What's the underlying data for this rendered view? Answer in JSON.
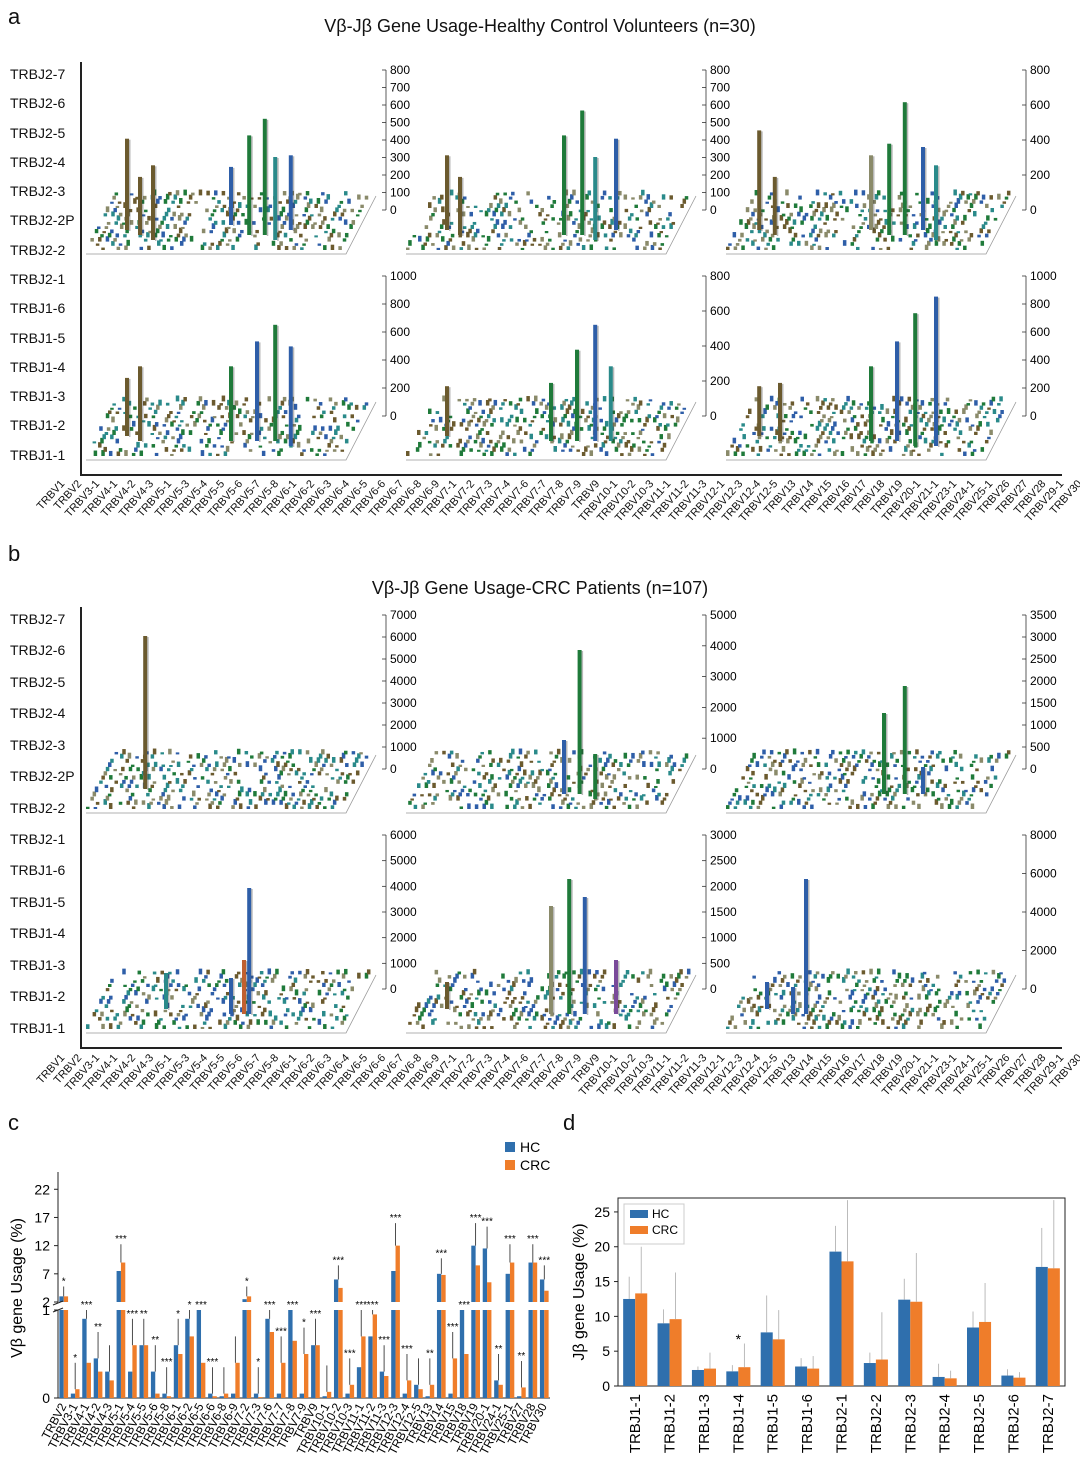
{
  "panel_labels": {
    "a": "a",
    "b": "b",
    "c": "c",
    "d": "d"
  },
  "panel_a": {
    "title": "Vβ-Jβ Gene Usage-Healthy Control Volunteers (n=30)",
    "jb_labels": [
      "TRBJ2-7",
      "TRBJ2-6",
      "TRBJ2-5",
      "TRBJ2-4",
      "TRBJ2-3",
      "TRBJ2-2P",
      "TRBJ2-2",
      "TRBJ2-1",
      "TRBJ1-6",
      "TRBJ1-5",
      "TRBJ1-4",
      "TRBJ1-3",
      "TRBJ1-2",
      "TRBJ1-1"
    ],
    "z_ticks": [
      [
        "800",
        "700",
        "600",
        "500",
        "400",
        "300",
        "200",
        "100",
        "0"
      ],
      [
        "800",
        "700",
        "600",
        "500",
        "400",
        "300",
        "200",
        "100",
        "0"
      ],
      [
        "800",
        "600",
        "400",
        "200",
        "0"
      ],
      [
        "1000",
        "800",
        "600",
        "400",
        "200",
        "0"
      ],
      [
        "800",
        "600",
        "400",
        "200",
        "0"
      ],
      [
        "1000",
        "800",
        "600",
        "400",
        "200",
        "0"
      ]
    ]
  },
  "panel_b": {
    "title": "Vβ-Jβ Gene Usage-CRC Patients (n=107)",
    "jb_labels": [
      "TRBJ2-7",
      "TRBJ2-6",
      "TRBJ2-5",
      "TRBJ2-4",
      "TRBJ2-3",
      "TRBJ2-2P",
      "TRBJ2-2",
      "TRBJ2-1",
      "TRBJ1-6",
      "TRBJ1-5",
      "TRBJ1-4",
      "TRBJ1-3",
      "TRBJ1-2",
      "TRBJ1-1"
    ],
    "z_ticks": [
      [
        "7000",
        "6000",
        "5000",
        "4000",
        "3000",
        "2000",
        "1000",
        "0"
      ],
      [
        "5000",
        "4000",
        "3000",
        "2000",
        "1000",
        "0"
      ],
      [
        "3500",
        "3000",
        "2500",
        "2000",
        "1500",
        "1000",
        "500",
        "0"
      ],
      [
        "6000",
        "5000",
        "4000",
        "3000",
        "2000",
        "1000",
        "0"
      ],
      [
        "3000",
        "2500",
        "2000",
        "1500",
        "1000",
        "500",
        "0"
      ],
      [
        "8000",
        "6000",
        "4000",
        "2000",
        "0"
      ]
    ]
  },
  "vb_labels": [
    "TRBV1",
    "TRBV2",
    "TRBV3-1",
    "TRBV4-1",
    "TRBV4-2",
    "TRBV4-3",
    "TRBV5-1",
    "TRBV5-3",
    "TRBV5-4",
    "TRBV5-5",
    "TRBV5-6",
    "TRBV5-7",
    "TRBV5-8",
    "TRBV6-1",
    "TRBV6-2",
    "TRBV6-3",
    "TRBV6-4",
    "TRBV6-5",
    "TRBV6-6",
    "TRBV6-7",
    "TRBV6-8",
    "TRBV6-9",
    "TRBV7-1",
    "TRBV7-2",
    "TRBV7-3",
    "TRBV7-4",
    "TRBV7-6",
    "TRBV7-7",
    "TRBV7-8",
    "TRBV7-9",
    "TRBV9",
    "TRBV10-1",
    "TRBV10-2",
    "TRBV10-3",
    "TRBV11-1",
    "TRBV11-2",
    "TRBV11-3",
    "TRBV12-1",
    "TRBV12-3",
    "TRBV12-4",
    "TRBV12-5",
    "TRBV13",
    "TRBV14",
    "TRBV15",
    "TRBV16",
    "TRBV17",
    "TRBV18",
    "TRBV19",
    "TRBV20-1",
    "TRBV21-1",
    "TRBV23-1",
    "TRBV24-1",
    "TRBV25-1",
    "TRBV26",
    "TRBV27",
    "TRBV28",
    "TRBV29-1",
    "TRBV30"
  ],
  "colors": {
    "hc": "#2f6fad",
    "crc": "#ef7d2a",
    "green": "#1f7a3a",
    "olive": "#6b5a2e",
    "blue": "#2e5ea8",
    "teal": "#2a8a8a"
  },
  "chart_data": [
    {
      "type": "bar",
      "panel": "c",
      "title": "",
      "xlabel": "",
      "ylabel": "Vβ gene Usage (%)",
      "legend": [
        "HC",
        "CRC"
      ],
      "legend_position": "top-right",
      "y_ticks_upper": [
        "22",
        "17",
        "12",
        "7",
        "2"
      ],
      "y_ticks_lower": [
        "1",
        "0"
      ],
      "broken_axis": {
        "lower": [
          0,
          1
        ],
        "upper": [
          2,
          24
        ]
      },
      "categories": [
        "TRBV2",
        "TRBV3-1",
        "TRBV4-1",
        "TRBV4-2",
        "TRBV4-3",
        "TRBV5-1",
        "TRBV5-4",
        "TRBV5-5",
        "TRBV5-6",
        "TRBV5-8",
        "TRBV6-1",
        "TRBV6-2",
        "TRBV6-5",
        "TRBV6-6",
        "TRBV6-8",
        "TRBV6-9",
        "TRBV7-2",
        "TRBV7-3",
        "TRBV7-6",
        "TRBV7-7",
        "TRBV7-8",
        "TRBV7-9",
        "TRBV9",
        "TRBV10-1",
        "TRBV10-2",
        "TRBV10-3",
        "TRBV11-1",
        "TRBV11-2",
        "TRBV11-3",
        "TRBV12-3",
        "TRBV12-4",
        "TRBV12-5",
        "TRBV13",
        "TRBV14",
        "TRBV15",
        "TRBV18",
        "TRBV19",
        "TRBV20-1",
        "TRBV24-1",
        "TRBV25-1",
        "TRBV27",
        "TRBV28",
        "TRBV30"
      ],
      "series": [
        {
          "name": "HC",
          "values": [
            3.0,
            0.05,
            0.9,
            0.45,
            0.3,
            7.5,
            0.3,
            0.6,
            0.3,
            0.05,
            0.6,
            0.9,
            1.0,
            0.05,
            0.02,
            0.05,
            2.5,
            0.05,
            0.9,
            0.05,
            1.0,
            0.05,
            0.6,
            0.02,
            6.0,
            0.05,
            0.35,
            0.7,
            0.3,
            7.5,
            0.05,
            0.15,
            0.02,
            7.0,
            0.05,
            1.0,
            12.0,
            11.5,
            0.2,
            7.0,
            0.02,
            9.0,
            6.0
          ]
        },
        {
          "name": "CRC",
          "values": [
            3.0,
            0.1,
            0.4,
            0.3,
            0.2,
            9.0,
            0.6,
            0.6,
            0.05,
            0.02,
            0.5,
            0.7,
            0.4,
            0.02,
            0.05,
            0.4,
            3.0,
            0.01,
            0.75,
            0.4,
            0.65,
            0.5,
            0.6,
            0.07,
            4.5,
            0.15,
            0.7,
            0.95,
            0.25,
            12.0,
            0.2,
            0.1,
            0.15,
            6.8,
            0.45,
            0.5,
            8.5,
            5.5,
            0.15,
            9.0,
            0.12,
            9.0,
            4.0
          ]
        }
      ],
      "significance": [
        "*",
        "*",
        "***",
        "**",
        "",
        "***",
        "***",
        "**",
        "**",
        "***",
        "*",
        "*",
        "***",
        "***",
        "",
        "",
        "*",
        "*",
        "***",
        "***",
        "***",
        "*",
        "***",
        "",
        "***",
        "***",
        "***",
        "***",
        "***",
        "***",
        "***",
        "",
        "**",
        "***",
        "***",
        "***",
        "***",
        "***",
        "**",
        "***",
        "**",
        "***",
        "***"
      ]
    },
    {
      "type": "bar",
      "panel": "d",
      "title": "",
      "xlabel": "",
      "ylabel": "Jβ gene Usage (%)",
      "legend": [
        "HC",
        "CRC"
      ],
      "legend_position": "top-left",
      "ylim": [
        0,
        27
      ],
      "y_ticks": [
        "0",
        "5",
        "10",
        "15",
        "20",
        "25"
      ],
      "categories": [
        "TRBJ1-1",
        "TRBJ1-2",
        "TRBJ1-3",
        "TRBJ1-4",
        "TRBJ1-5",
        "TRBJ1-6",
        "TRBJ2-1",
        "TRBJ2-2",
        "TRBJ2-3",
        "TRBJ2-4",
        "TRBJ2-5",
        "TRBJ2-6",
        "TRBJ2-7"
      ],
      "series": [
        {
          "name": "HC",
          "values": [
            12.5,
            9.0,
            2.3,
            2.1,
            7.7,
            2.8,
            19.3,
            3.3,
            12.4,
            1.3,
            8.4,
            1.5,
            17.1
          ]
        },
        {
          "name": "CRC",
          "values": [
            13.3,
            9.6,
            2.5,
            2.7,
            6.7,
            2.5,
            17.9,
            3.8,
            12.1,
            1.1,
            9.2,
            1.2,
            16.9
          ]
        }
      ],
      "errors_hc": [
        3.2,
        2.0,
        0.5,
        0.9,
        5.3,
        1.2,
        3.7,
        1.5,
        3.0,
        1.9,
        2.3,
        0.9,
        5.6
      ],
      "errors_crc": [
        6.7,
        6.7,
        2.3,
        3.4,
        4.2,
        1.8,
        8.8,
        6.8,
        7.0,
        1.1,
        5.6,
        0.8,
        9.8
      ],
      "significance": [
        "",
        "",
        "",
        "*",
        "",
        "",
        "",
        "",
        "",
        "",
        "",
        "",
        ""
      ]
    }
  ]
}
